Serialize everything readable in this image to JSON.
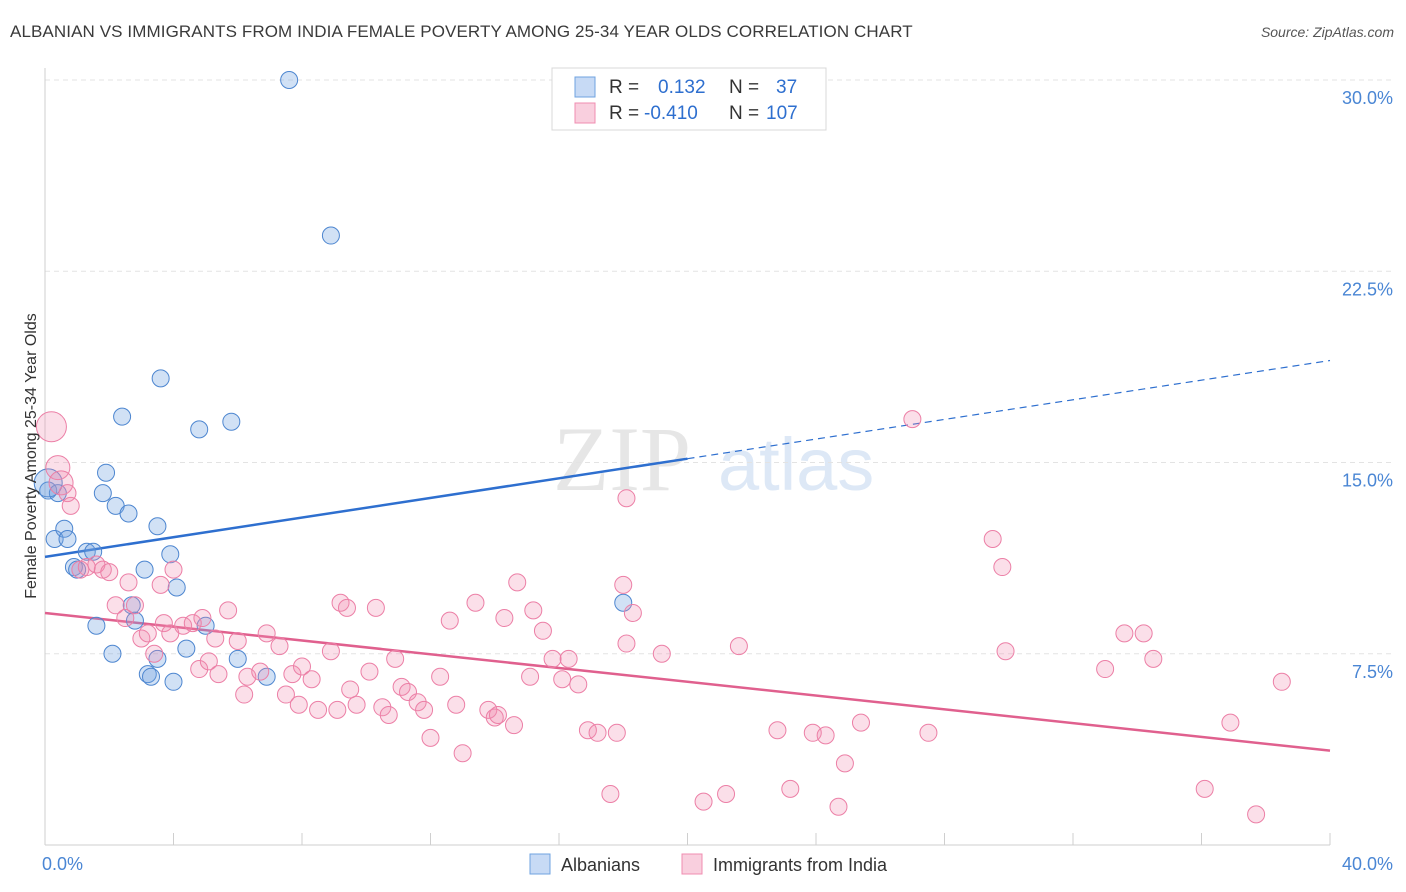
{
  "title": "ALBANIAN VS IMMIGRANTS FROM INDIA FEMALE POVERTY AMONG 25-34 YEAR OLDS CORRELATION CHART",
  "source": "Source: ZipAtlas.com",
  "watermark": {
    "zip": "ZIP",
    "atlas": "atlas"
  },
  "colors": {
    "albanians": "#6fa3e0",
    "india": "#f08cb0",
    "albanians_line": "#2e6fcf",
    "india_line": "#e0608e",
    "tick_label": "#4a86d4"
  },
  "legend": {
    "rows": [
      {
        "r_label": "R =",
        "r_value": "0.132",
        "n_label": "N =",
        "n_value": "37"
      },
      {
        "r_label": "R =",
        "r_value": "-0.410",
        "n_label": "N =",
        "n_value": "107"
      }
    ]
  },
  "bottom_legend": [
    "Albanians",
    "Immigrants from India"
  ],
  "chart_data": {
    "type": "scatter",
    "title": "ALBANIAN VS IMMIGRANTS FROM INDIA FEMALE POVERTY AMONG 25-34 YEAR OLDS CORRELATION CHART",
    "xlabel": "",
    "ylabel": "Female Poverty Among 25-34 Year Olds",
    "xlim": [
      0,
      40
    ],
    "ylim": [
      0,
      30
    ],
    "x_tick_labels": [
      "0.0%",
      "40.0%"
    ],
    "y_ticks": [
      7.5,
      15.0,
      22.5,
      30.0
    ],
    "y_tick_labels": [
      "7.5%",
      "15.0%",
      "22.5%",
      "30.0%"
    ],
    "grid": true,
    "legend_position": "top-center",
    "series": [
      {
        "name": "Albanians",
        "points": [
          [
            0.1,
            13.9
          ],
          [
            0.3,
            12.0
          ],
          [
            0.4,
            13.8
          ],
          [
            0.6,
            12.4
          ],
          [
            0.7,
            12.0
          ],
          [
            0.9,
            10.9
          ],
          [
            1.0,
            10.8
          ],
          [
            1.3,
            11.5
          ],
          [
            1.5,
            11.5
          ],
          [
            1.6,
            8.6
          ],
          [
            1.8,
            13.8
          ],
          [
            1.9,
            14.6
          ],
          [
            2.1,
            7.5
          ],
          [
            2.2,
            13.3
          ],
          [
            2.4,
            16.8
          ],
          [
            2.6,
            13.0
          ],
          [
            2.7,
            9.4
          ],
          [
            2.8,
            8.8
          ],
          [
            3.1,
            10.8
          ],
          [
            3.2,
            6.7
          ],
          [
            3.3,
            6.6
          ],
          [
            3.5,
            12.5
          ],
          [
            3.6,
            18.3
          ],
          [
            3.5,
            7.3
          ],
          [
            3.9,
            11.4
          ],
          [
            4.0,
            6.4
          ],
          [
            4.1,
            10.1
          ],
          [
            4.4,
            7.7
          ],
          [
            4.8,
            16.3
          ],
          [
            5.0,
            8.6
          ],
          [
            5.8,
            16.6
          ],
          [
            6.0,
            7.3
          ],
          [
            6.9,
            6.6
          ],
          [
            7.6,
            30.0
          ],
          [
            8.9,
            23.9
          ],
          [
            18.0,
            9.5
          ],
          [
            0.1,
            14.2
          ]
        ],
        "trend": {
          "x": [
            0,
            40
          ],
          "y": [
            11.3,
            19.0
          ],
          "solid_until_x": 20
        }
      },
      {
        "name": "Immigrants from India",
        "points": [
          [
            0.2,
            16.4
          ],
          [
            0.4,
            14.8
          ],
          [
            0.5,
            14.2
          ],
          [
            0.7,
            13.8
          ],
          [
            0.8,
            13.3
          ],
          [
            1.1,
            10.8
          ],
          [
            1.3,
            10.9
          ],
          [
            1.6,
            11.0
          ],
          [
            1.8,
            10.8
          ],
          [
            2.0,
            10.7
          ],
          [
            2.2,
            9.4
          ],
          [
            2.5,
            8.9
          ],
          [
            2.6,
            10.3
          ],
          [
            2.8,
            9.4
          ],
          [
            3.0,
            8.1
          ],
          [
            3.2,
            8.3
          ],
          [
            3.4,
            7.5
          ],
          [
            3.6,
            10.2
          ],
          [
            3.7,
            8.7
          ],
          [
            3.9,
            8.3
          ],
          [
            4.0,
            10.8
          ],
          [
            4.3,
            8.6
          ],
          [
            4.6,
            8.7
          ],
          [
            4.8,
            6.9
          ],
          [
            4.9,
            8.9
          ],
          [
            5.1,
            7.2
          ],
          [
            5.3,
            8.1
          ],
          [
            5.4,
            6.7
          ],
          [
            5.7,
            9.2
          ],
          [
            6.0,
            8.0
          ],
          [
            6.3,
            6.6
          ],
          [
            6.2,
            5.9
          ],
          [
            6.7,
            6.8
          ],
          [
            6.9,
            8.3
          ],
          [
            7.3,
            7.8
          ],
          [
            7.5,
            5.9
          ],
          [
            7.7,
            6.7
          ],
          [
            7.9,
            5.5
          ],
          [
            8.0,
            7.0
          ],
          [
            8.3,
            6.5
          ],
          [
            8.5,
            5.3
          ],
          [
            8.9,
            7.6
          ],
          [
            9.2,
            9.5
          ],
          [
            9.4,
            9.3
          ],
          [
            9.1,
            5.3
          ],
          [
            9.5,
            6.1
          ],
          [
            9.7,
            5.5
          ],
          [
            10.1,
            6.8
          ],
          [
            10.3,
            9.3
          ],
          [
            10.5,
            5.4
          ],
          [
            10.7,
            5.1
          ],
          [
            10.9,
            7.3
          ],
          [
            11.1,
            6.2
          ],
          [
            11.3,
            6.0
          ],
          [
            11.6,
            5.6
          ],
          [
            11.8,
            5.3
          ],
          [
            12.0,
            4.2
          ],
          [
            12.3,
            6.6
          ],
          [
            12.6,
            8.8
          ],
          [
            12.8,
            5.5
          ],
          [
            13.0,
            3.6
          ],
          [
            13.4,
            9.5
          ],
          [
            13.8,
            5.3
          ],
          [
            14.0,
            5.0
          ],
          [
            14.1,
            5.1
          ],
          [
            14.3,
            8.9
          ],
          [
            14.6,
            4.7
          ],
          [
            14.7,
            10.3
          ],
          [
            15.1,
            6.6
          ],
          [
            15.2,
            9.2
          ],
          [
            15.5,
            8.4
          ],
          [
            15.8,
            7.3
          ],
          [
            16.1,
            6.5
          ],
          [
            16.3,
            7.3
          ],
          [
            16.6,
            6.3
          ],
          [
            16.9,
            4.5
          ],
          [
            17.2,
            4.4
          ],
          [
            17.6,
            2.0
          ],
          [
            17.8,
            4.4
          ],
          [
            18.1,
            13.6
          ],
          [
            18.0,
            10.2
          ],
          [
            18.3,
            9.1
          ],
          [
            18.1,
            7.9
          ],
          [
            19.2,
            7.5
          ],
          [
            20.5,
            1.7
          ],
          [
            21.2,
            2.0
          ],
          [
            21.6,
            7.8
          ],
          [
            22.8,
            4.5
          ],
          [
            23.2,
            2.2
          ],
          [
            23.9,
            4.4
          ],
          [
            24.3,
            4.3
          ],
          [
            24.7,
            1.5
          ],
          [
            24.9,
            3.2
          ],
          [
            25.4,
            4.8
          ],
          [
            27.0,
            16.7
          ],
          [
            27.5,
            4.4
          ],
          [
            29.5,
            12.0
          ],
          [
            29.8,
            10.9
          ],
          [
            29.9,
            7.6
          ],
          [
            33.0,
            6.9
          ],
          [
            33.6,
            8.3
          ],
          [
            34.2,
            8.3
          ],
          [
            34.5,
            7.3
          ],
          [
            36.1,
            2.2
          ],
          [
            36.9,
            4.8
          ],
          [
            37.7,
            1.2
          ],
          [
            38.5,
            6.4
          ]
        ],
        "trend": {
          "x": [
            0,
            40
          ],
          "y": [
            9.1,
            3.7
          ]
        }
      }
    ]
  }
}
